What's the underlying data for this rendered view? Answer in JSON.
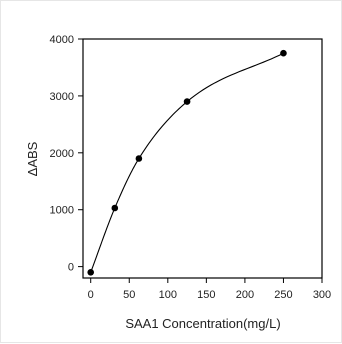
{
  "chart_data": {
    "type": "scatter",
    "title": "",
    "xlabel": "SAA1 Concentration(mg/L)",
    "ylabel": "ΔABS",
    "xlim": [
      -10,
      300
    ],
    "ylim": [
      -200,
      4000
    ],
    "x_ticks": [
      0,
      50,
      100,
      150,
      200,
      250,
      300
    ],
    "y_ticks": [
      0,
      1000,
      2000,
      3000,
      4000
    ],
    "grid": false,
    "legend": "none",
    "series": [
      {
        "x": [
          0,
          31.25,
          62.5,
          125,
          250
        ],
        "values": [
          -100,
          1030,
          1900,
          2900,
          3750
        ],
        "fit_curve": "smooth"
      }
    ],
    "colors": {
      "axis": "#000000",
      "marker": "#000000",
      "curve": "#000000"
    }
  }
}
